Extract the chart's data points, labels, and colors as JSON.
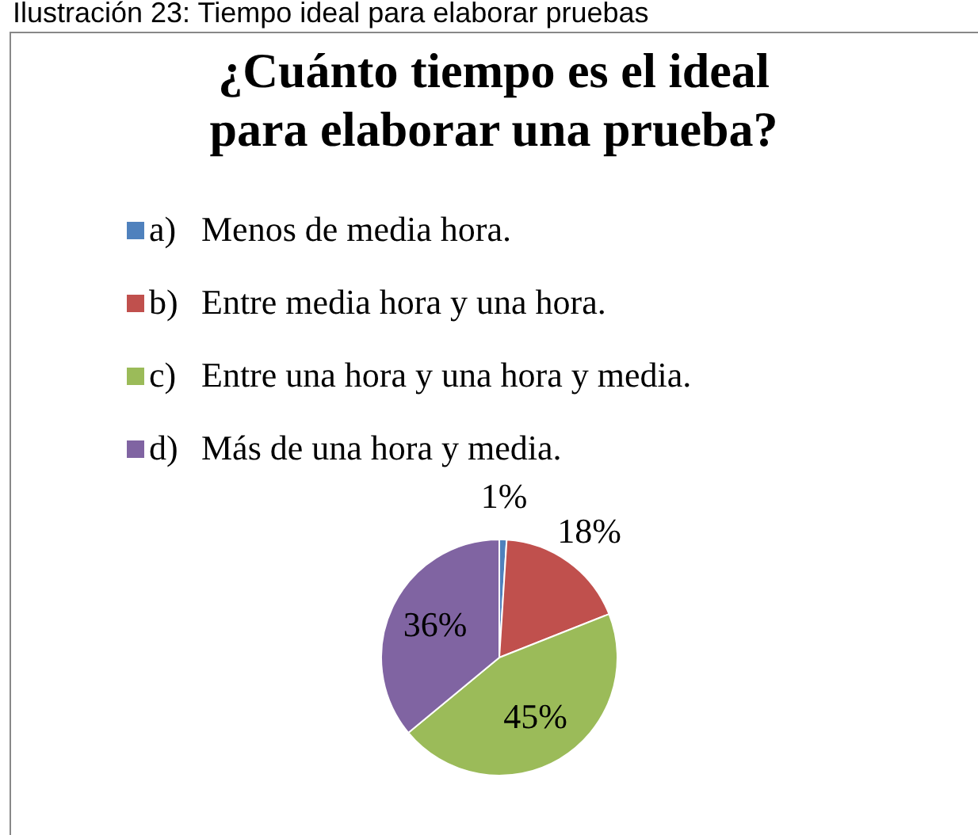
{
  "chart_data": {
    "type": "pie",
    "title": "¿Cuánto tiempo es el ideal\npara elaborar una prueba?",
    "annotations": [
      "Ilustración 23: Tiempo ideal para elaborar pruebas"
    ],
    "categories": [
      "a)\tMenos de media hora.",
      "b)\tEntre media hora y una hora.",
      "c)\tEntre una hora y una hora y media.",
      "d)\tMás de una hora y media."
    ],
    "values": [
      1,
      18,
      45,
      36
    ],
    "colors": [
      "#4f81bd",
      "#c0504d",
      "#9bbb59",
      "#8064a2"
    ],
    "value_labels": [
      "1%",
      "18%",
      "45%",
      "36%"
    ],
    "legend": "top left"
  }
}
